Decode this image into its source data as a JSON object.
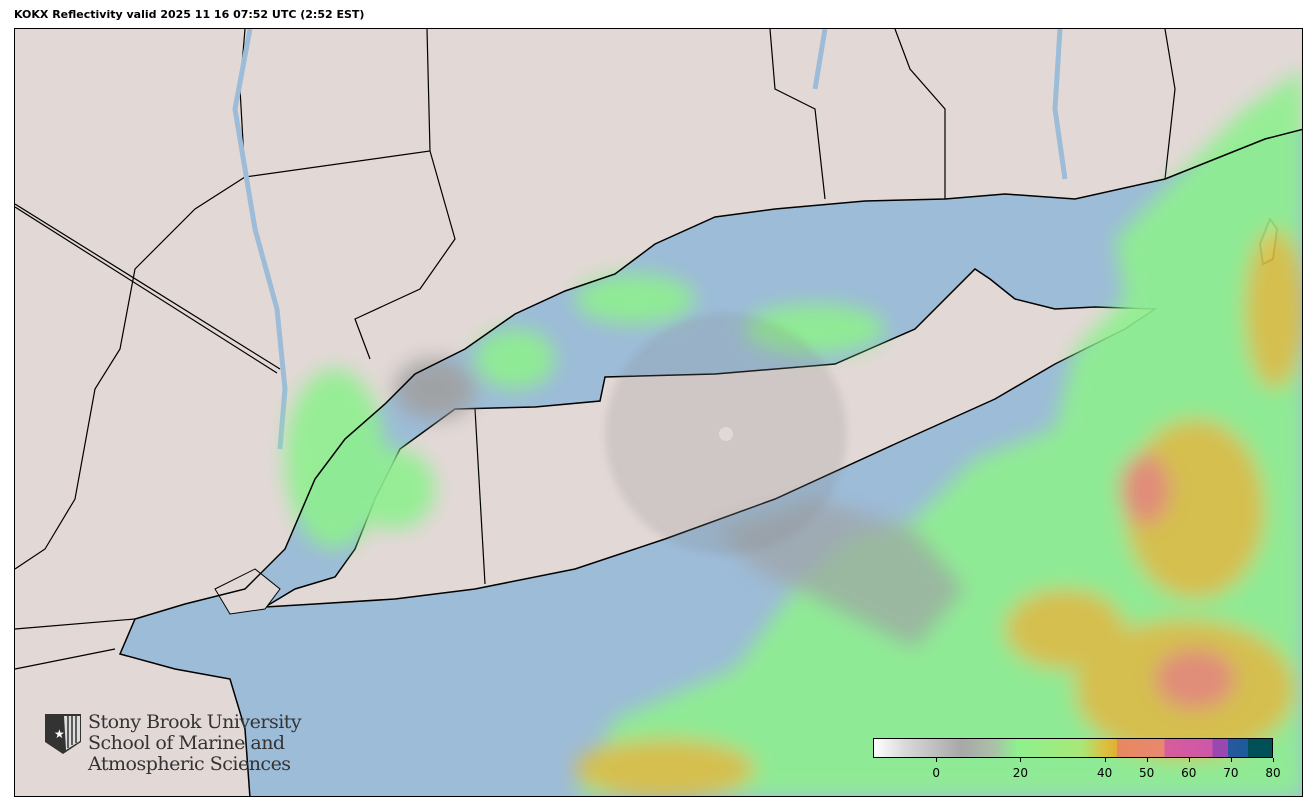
{
  "title": "KOKX Reflectivity valid 2025 11 16 07:52 UTC (2:52 EST)",
  "logo": {
    "lines": [
      "Stony Brook University",
      "School of Marine and",
      "Atmospheric Sciences"
    ],
    "icon": "sbu-shield-star-icon"
  },
  "colorbar": {
    "units_range": [
      -15,
      80
    ],
    "ticks": [
      {
        "value": 0,
        "label": "0"
      },
      {
        "value": 20,
        "label": "20"
      },
      {
        "value": 40,
        "label": "40"
      },
      {
        "value": 50,
        "label": "50"
      },
      {
        "value": 60,
        "label": "60"
      },
      {
        "value": 70,
        "label": "70"
      },
      {
        "value": 80,
        "label": "80"
      }
    ]
  },
  "colors": {
    "water": "#9dbcd8",
    "land": "#e2d8d6",
    "light_precip": "#8ef08e",
    "moderate_precip": "#dcc040",
    "heavy_precip": "#e88870"
  }
}
